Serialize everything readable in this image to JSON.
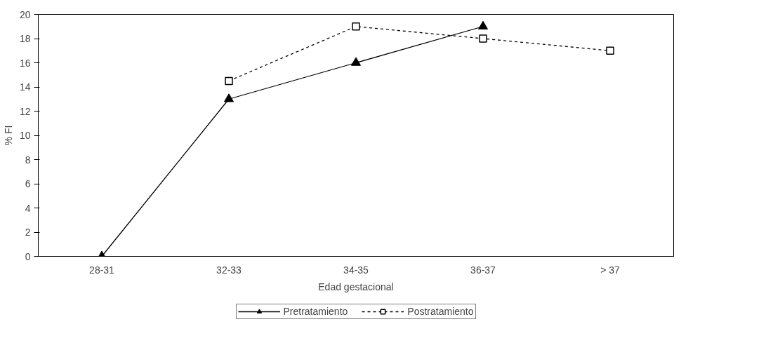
{
  "chart_data": {
    "type": "line",
    "xlabel": "Edad gestacional",
    "ylabel": "% FI",
    "categories": [
      "28-31",
      "32-33",
      "34-35",
      "36-37",
      "> 37"
    ],
    "series": [
      {
        "name": "Pretratamiento",
        "color": "#000000",
        "values": [
          0,
          13,
          16,
          19,
          null
        ],
        "marker": "triangle",
        "line_style": "solid"
      },
      {
        "name": "Postratamiento",
        "color": "#000000",
        "values": [
          null,
          14.5,
          19,
          18,
          17
        ],
        "marker": "square",
        "line_style": "dashed"
      }
    ],
    "ylim": [
      0,
      20
    ],
    "yticks": [
      0,
      2,
      4,
      6,
      8,
      10,
      12,
      14,
      16,
      18,
      20
    ],
    "grid": false,
    "legend": "bottom"
  }
}
